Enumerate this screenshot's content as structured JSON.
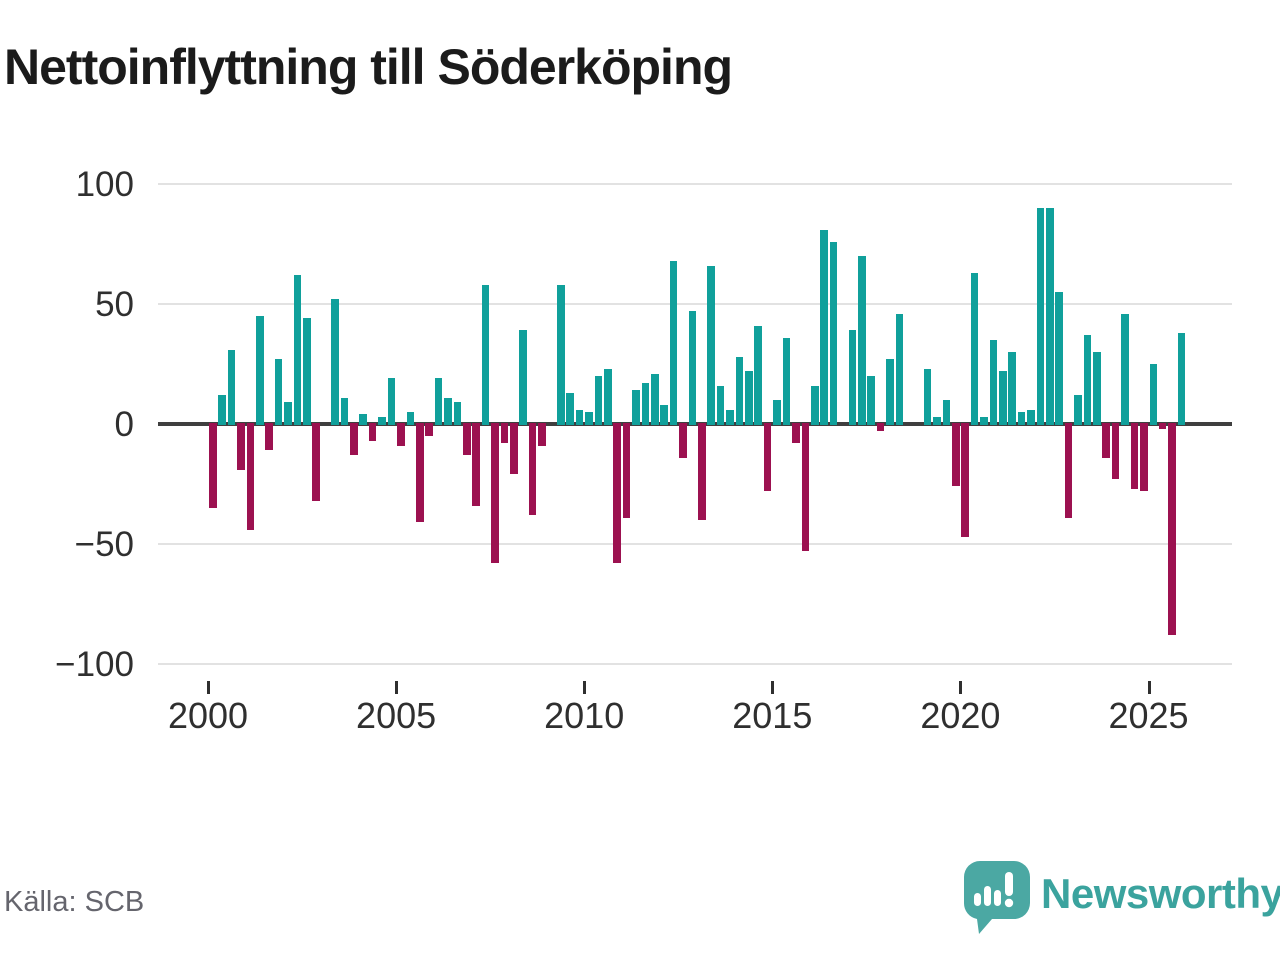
{
  "title": "Nettoinflyttning till Söderköping",
  "source": "Källa: SCB",
  "brand": {
    "name": "Newsworthy"
  },
  "colors": {
    "positive": "#10a09b",
    "negative": "#9c1150",
    "grid": "#e2e2e2",
    "axis": "#3f3f3f",
    "axis_text": "#2f2f2f",
    "title_text": "#1b1b1b",
    "source_text": "#65656d",
    "brand_teal": "#3ba39e",
    "logo_bubble": "#4ba8a3"
  },
  "chart_data": {
    "type": "bar",
    "title": "Nettoinflyttning till Söderköping",
    "period": "quarterly",
    "start": "2000-Q1",
    "end": "2025-Q4",
    "xlabel": "",
    "ylabel": "",
    "ylim": [
      -100,
      100
    ],
    "grid": true,
    "y_ticks": [
      100,
      50,
      0,
      -50,
      -100
    ],
    "y_tick_labels": [
      "100",
      "50",
      "0",
      "−50",
      "−100"
    ],
    "x_tick_years": [
      2000,
      2005,
      2010,
      2015,
      2020,
      2025
    ],
    "x_tick_labels": [
      "2000",
      "2005",
      "2010",
      "2015",
      "2020",
      "2025"
    ],
    "series_name": "Nettoinflyttning",
    "values": [
      -35,
      12,
      31,
      -19,
      -44,
      45,
      -11,
      27,
      9,
      62,
      44,
      -32,
      0,
      52,
      11,
      -13,
      4,
      -7,
      3,
      19,
      -9,
      5,
      -41,
      -5,
      19,
      11,
      9,
      -13,
      -34,
      58,
      -58,
      -8,
      -21,
      39,
      -38,
      -9,
      0,
      58,
      13,
      6,
      5,
      20,
      23,
      -58,
      -39,
      14,
      17,
      21,
      8,
      68,
      -14,
      47,
      -40,
      66,
      16,
      6,
      28,
      22,
      41,
      -28,
      10,
      36,
      -8,
      -53,
      16,
      81,
      76,
      0,
      39,
      70,
      20,
      -3,
      27,
      46,
      0,
      0,
      23,
      3,
      10,
      -26,
      -47,
      63,
      3,
      35,
      22,
      30,
      5,
      6,
      90,
      90,
      55,
      -39,
      12,
      37,
      30,
      -14,
      -23,
      46,
      -27,
      -28,
      25,
      -2,
      -88,
      38
    ]
  }
}
